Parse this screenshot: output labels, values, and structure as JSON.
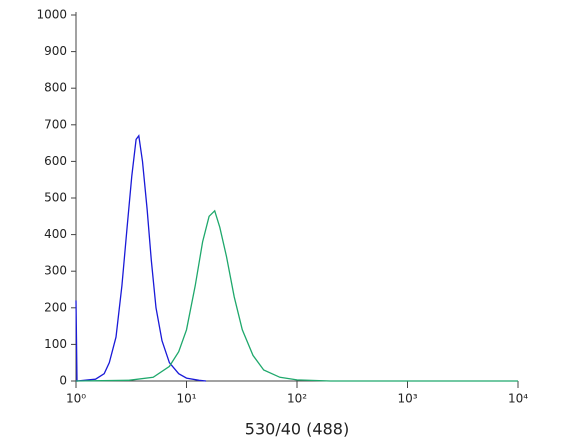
{
  "chart_data": {
    "type": "line",
    "xlabel": "530/40 (488)",
    "xscale": "log",
    "xlim": [
      1,
      10000
    ],
    "xticks": [
      {
        "value": 1,
        "label": "10⁰"
      },
      {
        "value": 10,
        "label": "10¹"
      },
      {
        "value": 100,
        "label": "10²"
      },
      {
        "value": 1000,
        "label": "10³"
      },
      {
        "value": 10000,
        "label": "10⁴"
      }
    ],
    "ylim": [
      0,
      1000
    ],
    "yticks": [
      0,
      100,
      200,
      300,
      400,
      500,
      600,
      700,
      800,
      900,
      1000
    ],
    "series": [
      {
        "color": "#1a1ad8",
        "x": [
          1,
          1.02,
          1.5,
          1.8,
          2.0,
          2.3,
          2.6,
          2.9,
          3.2,
          3.5,
          3.7,
          4.0,
          4.4,
          4.8,
          5.3,
          6.0,
          7.0,
          8.5,
          10,
          13,
          15
        ],
        "values": [
          220,
          0,
          5,
          20,
          50,
          120,
          260,
          420,
          560,
          660,
          670,
          600,
          470,
          330,
          200,
          110,
          50,
          20,
          8,
          2,
          0
        ]
      },
      {
        "color": "#1fa86c",
        "x": [
          1,
          3,
          5,
          7,
          8.5,
          10,
          12,
          14,
          16,
          18,
          20,
          23,
          27,
          32,
          40,
          50,
          70,
          100,
          200,
          10000
        ],
        "values": [
          0,
          2,
          10,
          40,
          80,
          140,
          260,
          380,
          450,
          465,
          420,
          340,
          230,
          140,
          70,
          30,
          10,
          3,
          0,
          0
        ]
      }
    ]
  }
}
